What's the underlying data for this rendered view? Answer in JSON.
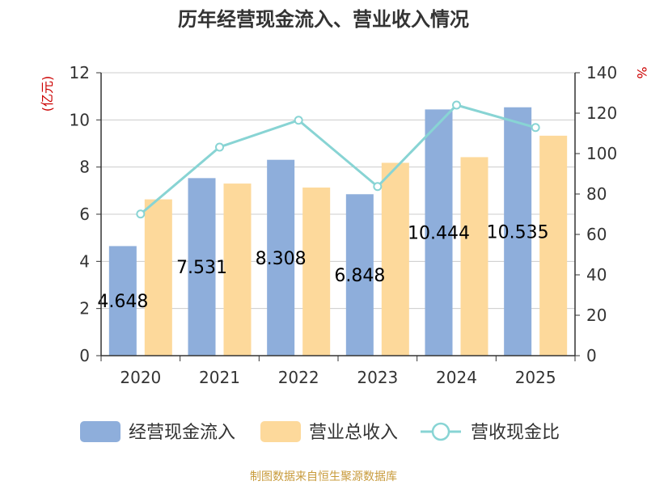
{
  "chart_data": {
    "type": "bar",
    "title": "历年经营现金流入、营业收入情况",
    "categories": [
      "2020",
      "2021",
      "2022",
      "2023",
      "2024",
      "2025"
    ],
    "series": [
      {
        "name": "经营现金流入",
        "type": "bar",
        "axis": "left",
        "color": "#8eaedb",
        "values": [
          4.648,
          7.531,
          8.308,
          6.848,
          10.444,
          10.535
        ],
        "labels": [
          "4.648",
          "7.531",
          "8.308",
          "6.848",
          "10.444",
          "10.535"
        ]
      },
      {
        "name": "营业总收入",
        "type": "bar",
        "axis": "left",
        "color": "#fdd99b",
        "values": [
          6.63,
          7.3,
          7.13,
          8.18,
          8.42,
          9.33
        ]
      },
      {
        "name": "营收现金比",
        "type": "line",
        "axis": "right",
        "color": "#88d4d4",
        "values": [
          70.1,
          103.2,
          116.5,
          83.7,
          124.0,
          112.9
        ]
      }
    ],
    "ylabel_left": "(亿元)",
    "ylabel_right": "%",
    "ylim_left": [
      0,
      12
    ],
    "ylim_right": [
      0,
      140
    ],
    "yticks_left": [
      0,
      2,
      4,
      6,
      8,
      10,
      12
    ],
    "yticks_right": [
      0,
      20,
      40,
      60,
      80,
      100,
      120,
      140
    ],
    "grid": true,
    "legend_position": "bottom",
    "source": "制图数据来自恒生聚源数据库"
  }
}
